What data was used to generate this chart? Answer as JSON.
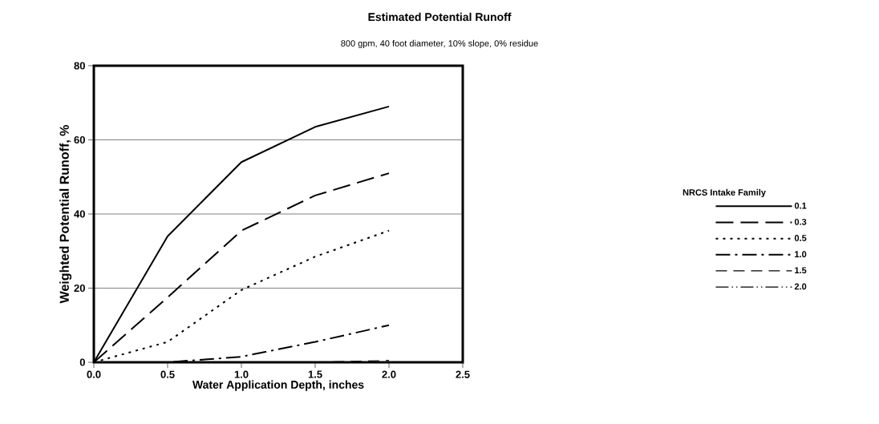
{
  "chart_data": {
    "type": "line",
    "title": "Estimated Potential Runoff",
    "subtitle": "800 gpm, 40 foot diameter, 10% slope, 0% residue",
    "xlabel": "Water Application Depth, inches",
    "ylabel": "Weighted Potential Runoff, %",
    "legend_title": "NRCS Intake Family",
    "x": [
      0,
      0.5,
      1.0,
      1.5,
      2.0
    ],
    "series": [
      {
        "name": "0.1",
        "color": "#000000",
        "line_style": "solid",
        "values": [
          0,
          34,
          54,
          63.5,
          69
        ]
      },
      {
        "name": "0.3",
        "color": "#000000",
        "line_style": "longdashed",
        "values": [
          0,
          17.5,
          35.5,
          45,
          51
        ]
      },
      {
        "name": "0.5",
        "color": "#000000",
        "line_style": "dotted",
        "values": [
          0,
          5.5,
          19.5,
          28.5,
          35.5
        ]
      },
      {
        "name": "1.0",
        "color": "#000000",
        "line_style": "dashdot",
        "values": [
          0,
          0,
          1.5,
          5.5,
          10
        ]
      },
      {
        "name": "1.5",
        "color": "#000000",
        "line_style": "dashed",
        "values": [
          null,
          null,
          null,
          0,
          0.5
        ]
      },
      {
        "name": "2.0",
        "color": "#000000",
        "line_style": "dashdotdot",
        "values": [
          null,
          null,
          null,
          null,
          null
        ]
      }
    ],
    "xlim": [
      0,
      2.5
    ],
    "xticks": [
      {
        "value": 0,
        "label": "0.0"
      },
      {
        "value": 0.5,
        "label": "0.5"
      },
      {
        "value": 1.0,
        "label": "1.0"
      },
      {
        "value": 1.5,
        "label": "1.5"
      },
      {
        "value": 2.0,
        "label": "2.0"
      },
      {
        "value": 2.5,
        "label": "2.5"
      }
    ],
    "ylim": [
      0,
      80
    ],
    "yticks": [
      0,
      20,
      40,
      60,
      80
    ],
    "grid": "y",
    "legend": "right"
  }
}
